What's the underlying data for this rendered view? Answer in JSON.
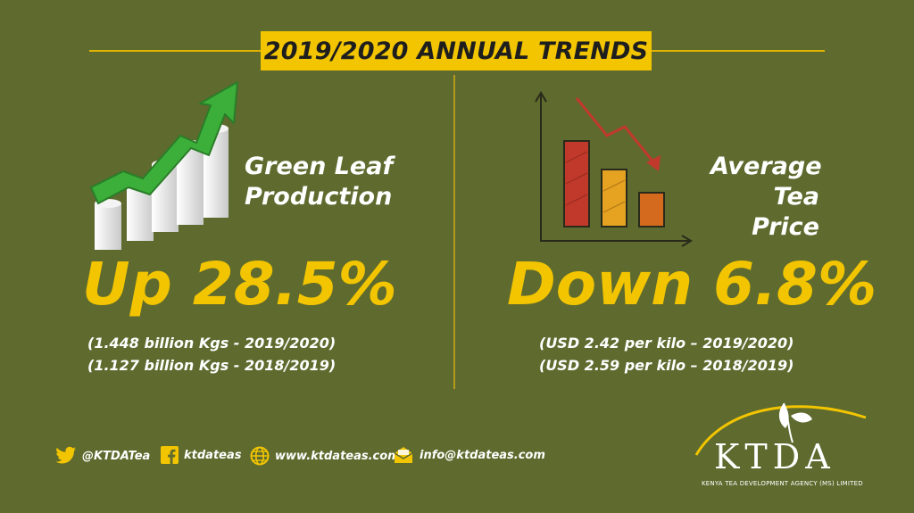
{
  "title": "2019/2020 ANNUAL TRENDS",
  "left": {
    "label_line1": "Green Leaf",
    "label_line2": "Production",
    "headline": "Up 28.5%",
    "detail_line1": "(1.448 billion Kgs - 2019/2020)",
    "detail_line2": "(1.127 billion Kgs - 2018/2019)"
  },
  "right": {
    "label_line1": "Average",
    "label_line2": "Tea Price",
    "headline": "Down 6.8%",
    "detail_line1": "(USD 2.42 per kilo – 2019/2020)",
    "detail_line2": "(USD 2.59 per kilo – 2018/2019)"
  },
  "footer": {
    "twitter": "@KTDATea",
    "facebook": "ktdateas",
    "website": "www.ktdateas.com",
    "email": "info@ktdateas.com"
  },
  "logo": {
    "name": "KTDA",
    "tagline": "KENYA TEA DEVELOPMENT AGENCY (MS) LIMITED"
  },
  "colors": {
    "background": "#5e6a2e",
    "accent_yellow": "#f2c500",
    "text_white": "#ffffff"
  },
  "icons": [
    "rising-bar-chart-icon",
    "falling-bar-chart-icon",
    "twitter-icon",
    "facebook-icon",
    "globe-icon",
    "envelope-icon",
    "ktda-logo"
  ]
}
